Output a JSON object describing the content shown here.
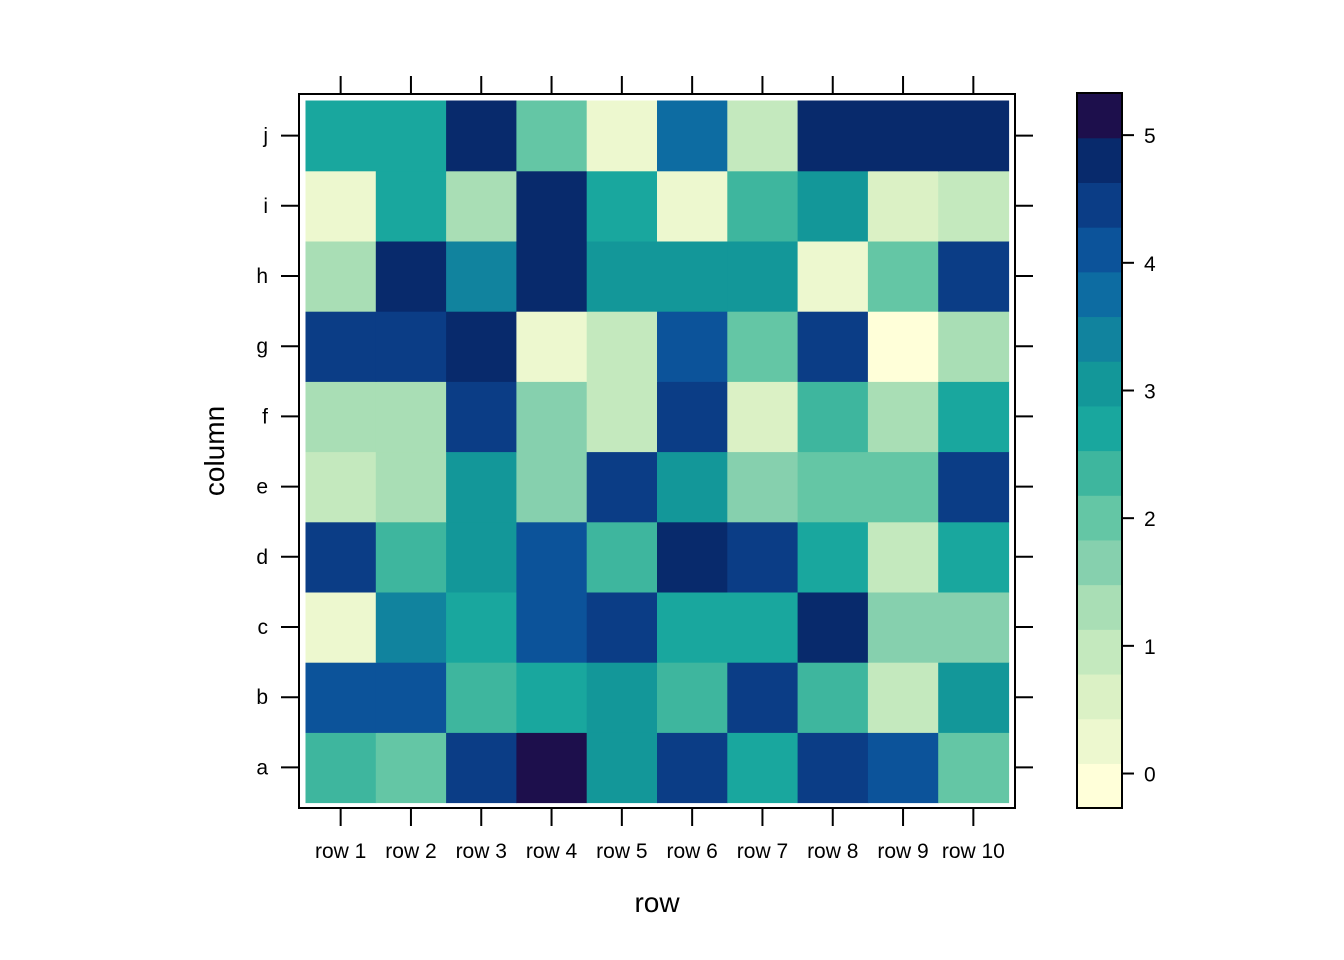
{
  "chart_data": {
    "type": "heatmap",
    "title": "",
    "xlabel": "row",
    "ylabel": "column",
    "x_categories": [
      "row 1",
      "row 2",
      "row 3",
      "row 4",
      "row 5",
      "row 6",
      "row 7",
      "row 8",
      "row 9",
      "row 10"
    ],
    "y_categories": [
      "a",
      "b",
      "c",
      "d",
      "e",
      "f",
      "g",
      "h",
      "i",
      "j"
    ],
    "values": [
      [
        2.3,
        1.9,
        4.3,
        5.2,
        3.0,
        4.3,
        2.7,
        4.6,
        4.1,
        1.9
      ],
      [
        4.0,
        4.0,
        2.2,
        2.7,
        3.0,
        2.4,
        4.3,
        2.2,
        1.0,
        3.0
      ],
      [
        0.3,
        3.3,
        2.7,
        4.0,
        4.6,
        2.8,
        2.8,
        4.9,
        1.8,
        1.8
      ],
      [
        4.6,
        2.4,
        3.0,
        4.0,
        2.2,
        4.7,
        4.3,
        2.7,
        1.0,
        2.7
      ],
      [
        1.1,
        1.4,
        3.0,
        1.8,
        4.3,
        3.0,
        1.8,
        2.1,
        2.1,
        4.3
      ],
      [
        1.4,
        1.4,
        4.3,
        1.7,
        1.1,
        4.3,
        0.6,
        2.4,
        1.4,
        2.7
      ],
      [
        4.3,
        4.6,
        4.9,
        0.3,
        1.1,
        4.0,
        2.1,
        4.6,
        0.0,
        1.4
      ],
      [
        1.4,
        4.9,
        3.3,
        4.9,
        3.0,
        3.0,
        3.0,
        0.3,
        2.1,
        4.3
      ],
      [
        0.3,
        2.7,
        1.4,
        4.9,
        2.7,
        0.2,
        2.4,
        3.1,
        0.7,
        1.1
      ],
      [
        2.8,
        2.8,
        4.9,
        2.1,
        0.3,
        3.8,
        1.1,
        4.9,
        4.9,
        4.9
      ]
    ],
    "colorbar": {
      "min": -0.27,
      "max": 5.33,
      "bin_width": 0.35,
      "ticks": [
        0,
        1,
        2,
        3,
        4,
        5
      ],
      "colors": [
        "#FFFFD9",
        "#EDF8CF",
        "#DBF1C5",
        "#C4E9BE",
        "#A9DEB5",
        "#86D0AE",
        "#64C6A5",
        "#3EB69E",
        "#19A79E",
        "#139799",
        "#11839E",
        "#0D6CA2",
        "#0C539A",
        "#0B3D86",
        "#082A6C",
        "#1D0F4C"
      ]
    },
    "grid": false,
    "legend": "colorbar right"
  }
}
